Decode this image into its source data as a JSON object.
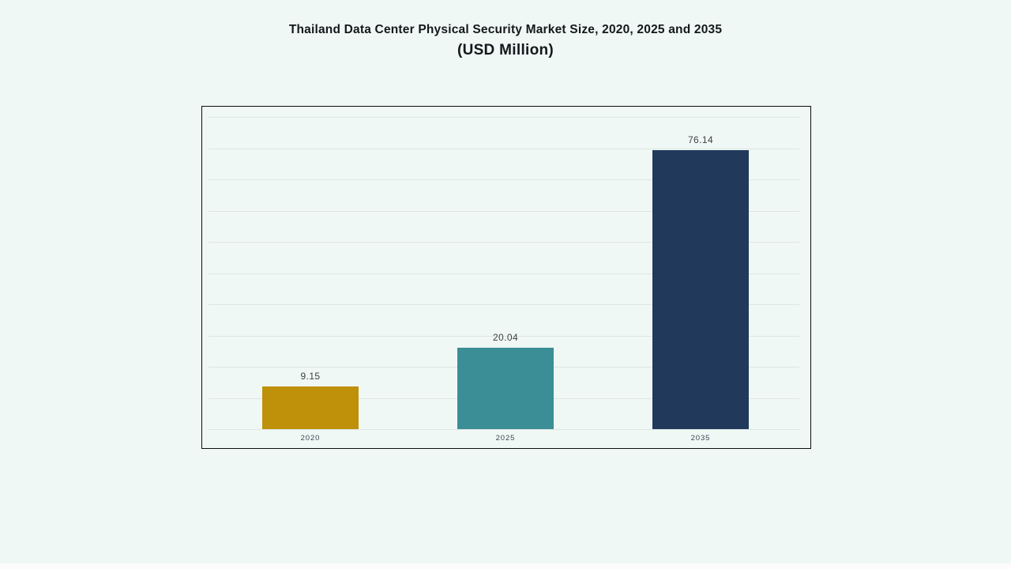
{
  "title": {
    "line1": "Thailand Data Center Physical Security Market Size, 2020, 2025 and 2035",
    "line2": "(USD Million)"
  },
  "chart_data": {
    "type": "bar",
    "title": "Thailand Data Center Physical Security Market Size, 2020, 2025 and 2035 (USD Million)",
    "categories": [
      "2020",
      "2025",
      "2035"
    ],
    "values": [
      9.15,
      20.04,
      76.14
    ],
    "data_labels": [
      "9.15",
      "20.04",
      "76.14"
    ],
    "bar_colors": [
      "#bf9009",
      "#3b8d96",
      "#213a5c"
    ],
    "xlabel": "",
    "ylabel": "",
    "y_tick_labels_visible": false,
    "gridlines": "horizontal",
    "gridline_count": 11,
    "legend": "none"
  },
  "colors": {
    "page_background": "#eff8f5",
    "chart_border": "#0d0d0d",
    "gridline": "#dee5e3",
    "title_text": "#14181c",
    "data_label_text": "#3e4044",
    "axis_label_text": "#3c4750",
    "footer_strip": "#fdfbfc"
  }
}
